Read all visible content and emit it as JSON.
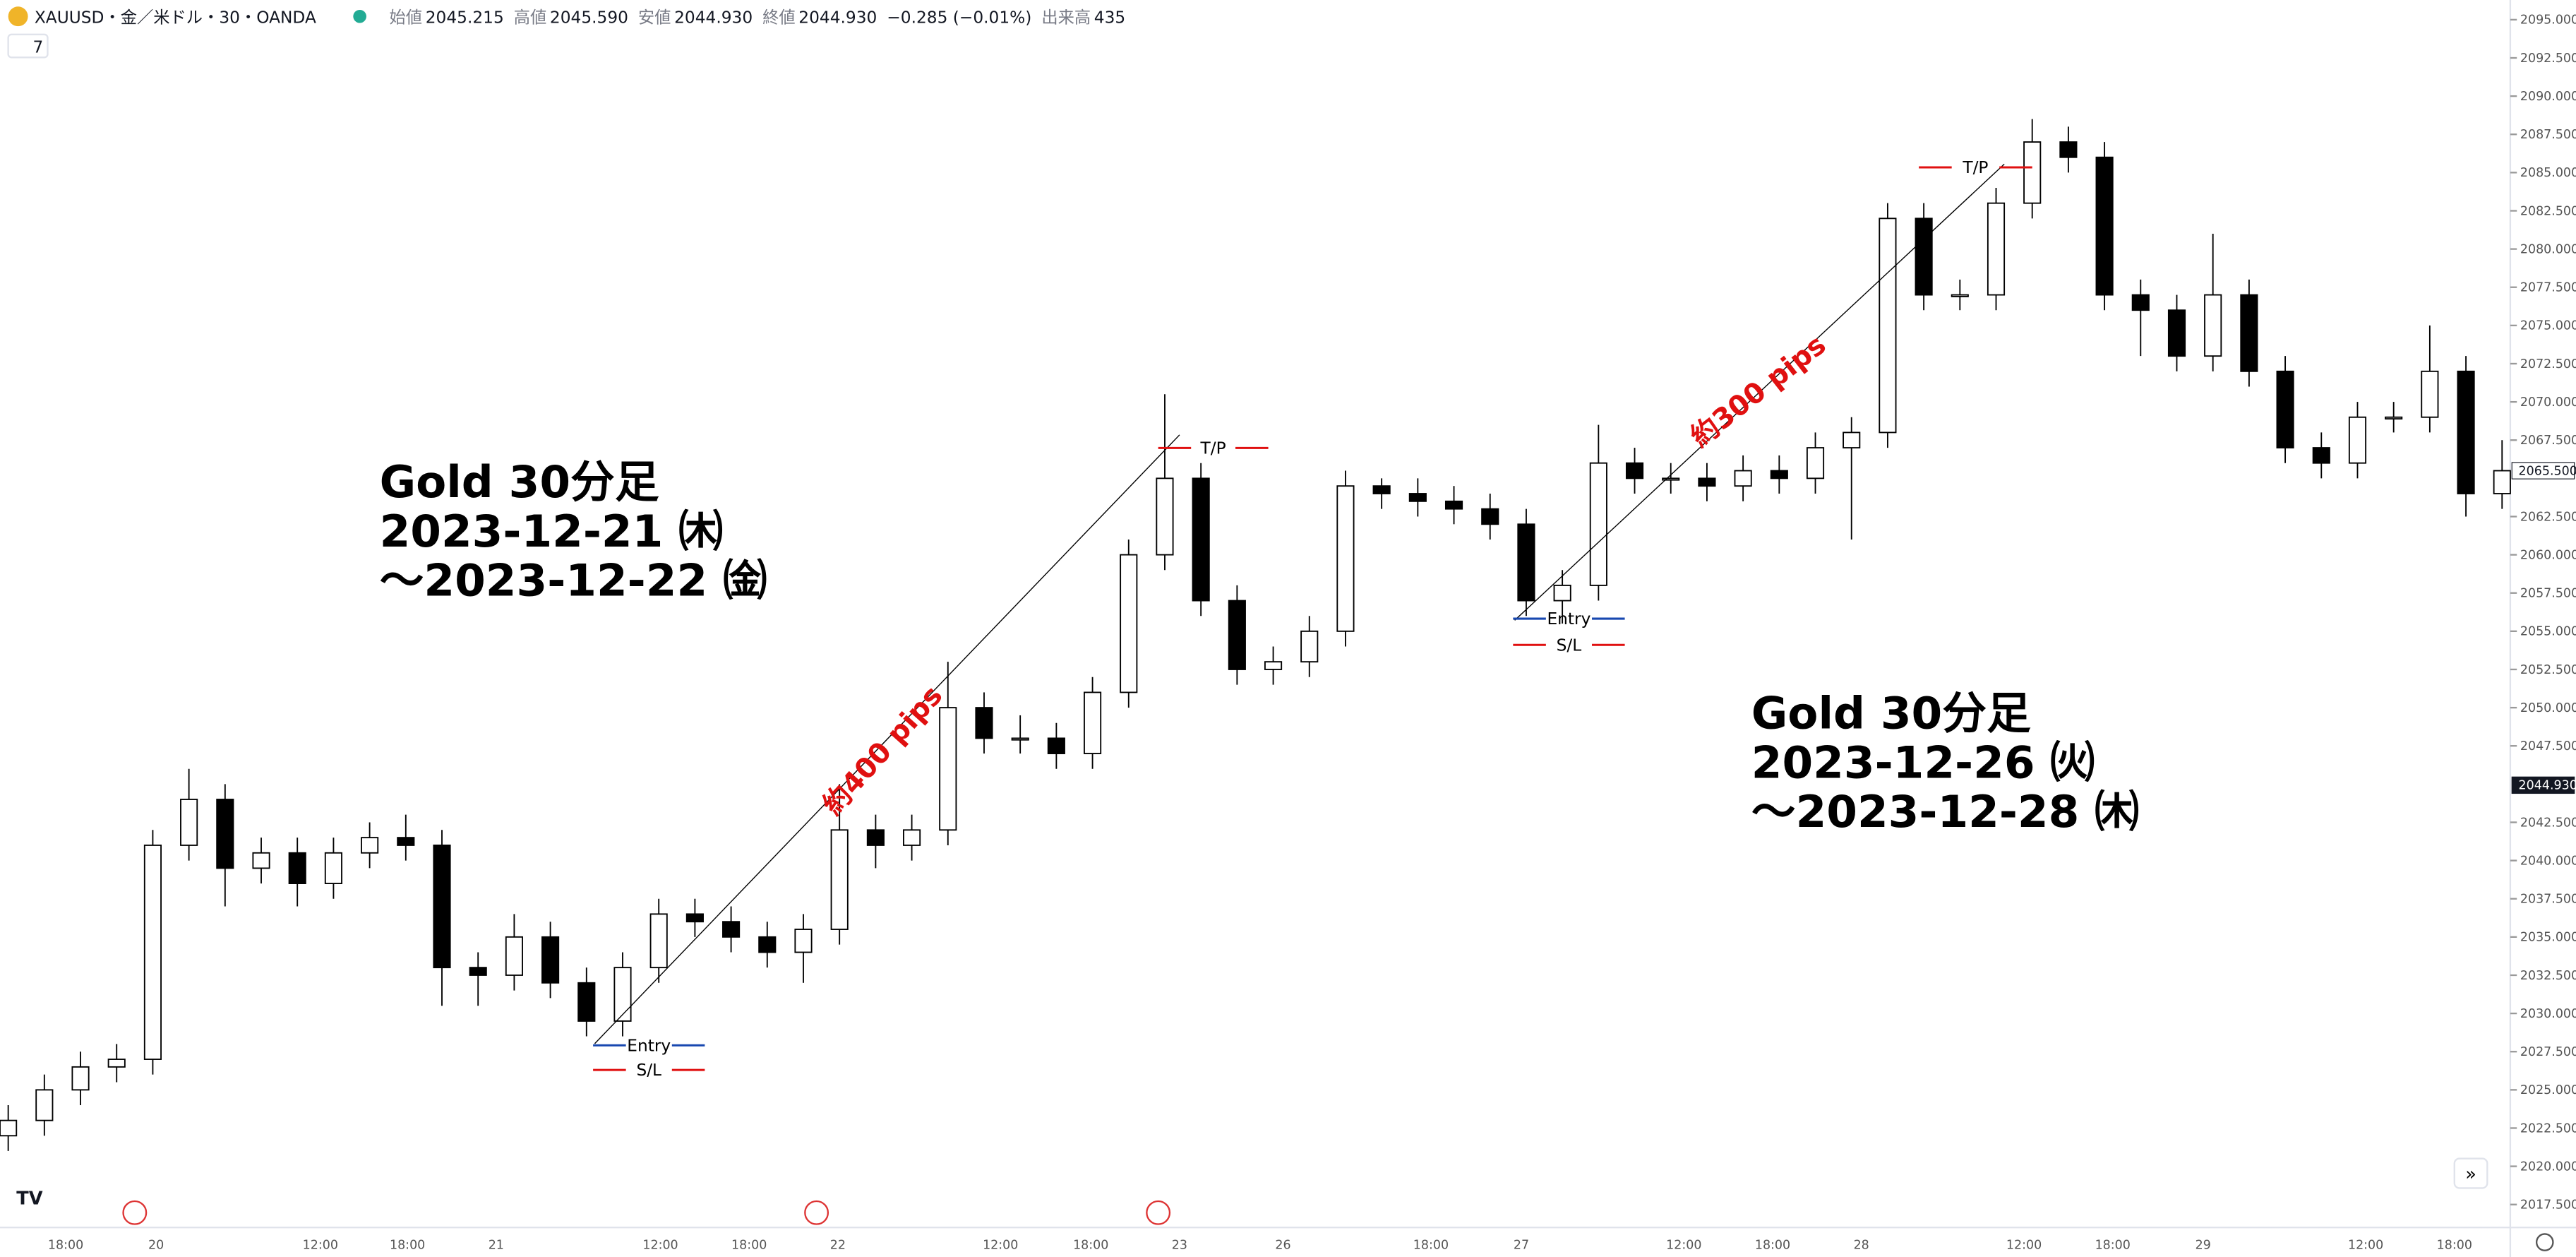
{
  "header": {
    "symbol": "XAUUSD・金／米ドル・30・OANDA",
    "open_label": "始値",
    "open": "2045.215",
    "high_label": "高値",
    "high": "2045.590",
    "low_label": "安値",
    "low": "2044.930",
    "close_label": "終値",
    "close": "2044.930",
    "change": "−0.285 (−0.01%)",
    "volume_label": "出来高",
    "volume": "435",
    "indicators": "7"
  },
  "chart_data": {
    "type": "candlestick",
    "open": [
      2022,
      2023,
      2025,
      2026.5,
      2027,
      2041,
      2044,
      2039.5,
      2040.5,
      2038.5,
      2040.5,
      2041.5,
      2041,
      2033,
      2032.5,
      2035,
      2032,
      2029.5,
      2033,
      2036.5,
      2036,
      2035,
      2034,
      2035.5,
      2042,
      2041,
      2042,
      2050,
      2048,
      2048,
      2047,
      2051,
      2060,
      2065,
      2057,
      2052.5,
      2053,
      2055,
      2064.5,
      2064,
      2063.5,
      2063,
      2062,
      2057,
      2058,
      2066,
      2065,
      2065,
      2064.5,
      2065.5,
      2065,
      2067,
      2068,
      2082,
      2077,
      2077,
      2083,
      2087,
      2086,
      2077,
      2076,
      2073,
      2077,
      2072,
      2067,
      2066,
      2069,
      2069,
      2072,
      2064
    ],
    "high": [
      2024,
      2026,
      2027.5,
      2028,
      2042,
      2046,
      2045,
      2041.5,
      2041.5,
      2041.5,
      2042.5,
      2043,
      2042,
      2034,
      2036.5,
      2036,
      2033,
      2034,
      2037.5,
      2037.5,
      2037,
      2036,
      2036.5,
      2045,
      2043,
      2043,
      2053,
      2051,
      2049.5,
      2049,
      2052,
      2061,
      2070.5,
      2066,
      2058,
      2054,
      2056,
      2065.5,
      2065,
      2065,
      2064.5,
      2064,
      2063,
      2059,
      2068.5,
      2067,
      2066,
      2066,
      2066.5,
      2066.5,
      2068,
      2069,
      2083,
      2083,
      2078,
      2084,
      2088.5,
      2088,
      2087,
      2078,
      2077,
      2081,
      2078,
      2073,
      2068,
      2070,
      2070,
      2075,
      2073,
      2067.5
    ],
    "low": [
      2021,
      2022,
      2024,
      2025.5,
      2026,
      2040,
      2037,
      2038.5,
      2037,
      2037.5,
      2039.5,
      2040,
      2030.5,
      2030.5,
      2031.5,
      2031,
      2028.5,
      2028.5,
      2032,
      2035,
      2034,
      2033,
      2032,
      2034.5,
      2039.5,
      2040,
      2041,
      2047,
      2047,
      2046,
      2046,
      2050,
      2059,
      2056,
      2051.5,
      2051.5,
      2052,
      2054,
      2063,
      2062.5,
      2062,
      2061,
      2056,
      2055.5,
      2057,
      2064,
      2064,
      2063.5,
      2063.5,
      2064,
      2064,
      2061,
      2067,
      2076,
      2076,
      2076,
      2082,
      2085,
      2076,
      2073,
      2072,
      2072,
      2071,
      2066,
      2065,
      2065,
      2068,
      2068,
      2062.5,
      2063
    ],
    "close": [
      2023,
      2025,
      2026.5,
      2027,
      2041,
      2044,
      2039.5,
      2040.5,
      2038.5,
      2040.5,
      2041.5,
      2041,
      2033,
      2032.5,
      2035,
      2032,
      2029.5,
      2033,
      2036.5,
      2036,
      2035,
      2034,
      2035.5,
      2042,
      2041,
      2042,
      2050,
      2048,
      2048,
      2047,
      2051,
      2060,
      2065,
      2057,
      2052.5,
      2053,
      2055,
      2064.5,
      2064,
      2063.5,
      2063,
      2062,
      2057,
      2058,
      2066,
      2065,
      2065,
      2064.5,
      2065.5,
      2065,
      2067,
      2068,
      2082,
      2077,
      2077,
      2083,
      2087,
      2086,
      2077,
      2076,
      2073,
      2077,
      2072,
      2067,
      2066,
      2069,
      2069,
      2072,
      2064,
      2065.5
    ],
    "ylim": [
      2016,
      2096
    ],
    "yticks": [
      {
        "value": 2095,
        "label": "2095.000"
      },
      {
        "value": 2092.5,
        "label": "2092.500"
      },
      {
        "value": 2090,
        "label": "2090.000"
      },
      {
        "value": 2087.5,
        "label": "2087.500"
      },
      {
        "value": 2085,
        "label": "2085.000"
      },
      {
        "value": 2082.5,
        "label": "2082.500"
      },
      {
        "value": 2080,
        "label": "2080.000"
      },
      {
        "value": 2077.5,
        "label": "2077.500"
      },
      {
        "value": 2075,
        "label": "2075.000"
      },
      {
        "value": 2072.5,
        "label": "2072.500"
      },
      {
        "value": 2070,
        "label": "2070.000"
      },
      {
        "value": 2067.5,
        "label": "2067.500"
      },
      {
        "value": 2062.5,
        "label": "2062.500"
      },
      {
        "value": 2060,
        "label": "2060.000"
      },
      {
        "value": 2057.5,
        "label": "2057.500"
      },
      {
        "value": 2055,
        "label": "2055.000"
      },
      {
        "value": 2052.5,
        "label": "2052.500"
      },
      {
        "value": 2050,
        "label": "2050.000"
      },
      {
        "value": 2047.5,
        "label": "2047.500"
      },
      {
        "value": 2042.5,
        "label": "2042.500"
      },
      {
        "value": 2040,
        "label": "2040.000"
      },
      {
        "value": 2037.5,
        "label": "2037.500"
      },
      {
        "value": 2035,
        "label": "2035.000"
      },
      {
        "value": 2032.5,
        "label": "2032.500"
      },
      {
        "value": 2030,
        "label": "2030.000"
      },
      {
        "value": 2027.5,
        "label": "2027.500"
      },
      {
        "value": 2025,
        "label": "2025.000"
      },
      {
        "value": 2022.5,
        "label": "2022.500"
      },
      {
        "value": 2020,
        "label": "2020.000"
      },
      {
        "value": 2017.5,
        "label": "2017.500"
      }
    ],
    "price_labels": [
      {
        "value": 2065.5,
        "label": "2065.500"
      },
      {
        "value": 2044.93,
        "label": "2044.930"
      }
    ],
    "time_labels": [
      "18:00",
      "20",
      "12:00",
      "18:00",
      "21",
      "12:00",
      "18:00",
      "22",
      "12:00",
      "18:00",
      "23",
      "26",
      "18:00",
      "27",
      "12:00",
      "18:00",
      "28",
      "12:00",
      "18:00",
      "29",
      "12:00",
      "18:00"
    ],
    "annotations": {
      "block1": [
        "Gold 30分足",
        "2023-12-21 ㈭",
        "～2023-12-22 ㈮"
      ],
      "block2": [
        "Gold 30分足",
        "2023-12-26 ㈫",
        "～2023-12-28 ㈭"
      ],
      "pips1": "約400 pips",
      "pips2": "約300 pips",
      "entry": "Entry",
      "sl": "S/L",
      "tp": "T/P"
    }
  }
}
